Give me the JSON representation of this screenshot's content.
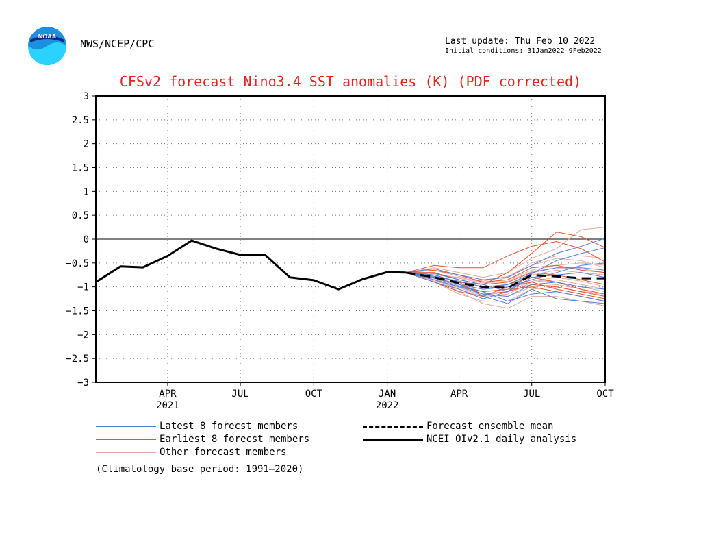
{
  "header": {
    "logo_text": "NOAA",
    "agency": "NWS/NCEP/CPC",
    "last_update": "Last update: Thu Feb 10 2022",
    "initial_conditions": "Initial conditions: 31Jan2022–9Feb2022"
  },
  "chart_data": {
    "type": "line",
    "title": "CFSv2 forecast Nino3.4 SST anomalies (K) (PDF corrected)",
    "xlabel": "",
    "ylabel": "",
    "ylim": [
      -3,
      3
    ],
    "yticks": [
      3,
      2.5,
      2,
      1.5,
      1,
      0.5,
      0,
      -0.5,
      -1,
      -1.5,
      -2,
      -2.5,
      -3
    ],
    "ytick_labels": [
      "3",
      "2.5",
      "2",
      "1.5",
      "1",
      "0.5",
      "0",
      "−0.5",
      "−1",
      "−1.5",
      "−2",
      "−2.5",
      "−3"
    ],
    "xlim": [
      "2021-01-15",
      "2022-10-15"
    ],
    "xticks": [
      {
        "date": "2021-04-15",
        "label": "APR",
        "year": "2021"
      },
      {
        "date": "2021-07-15",
        "label": "JUL",
        "year": ""
      },
      {
        "date": "2021-10-15",
        "label": "OCT",
        "year": ""
      },
      {
        "date": "2022-01-15",
        "label": "JAN",
        "year": "2022"
      },
      {
        "date": "2022-04-15",
        "label": "APR",
        "year": ""
      },
      {
        "date": "2022-07-15",
        "label": "JUL",
        "year": ""
      },
      {
        "date": "2022-10-15",
        "label": "OCT",
        "year": ""
      }
    ],
    "grid": true,
    "zero_line": true,
    "analysis": {
      "name": "NCEI OIv2.1 daily analysis",
      "color": "#000000",
      "x": [
        "2021-01-15",
        "2021-02-15",
        "2021-03-15",
        "2021-04-15",
        "2021-05-15",
        "2021-06-15",
        "2021-07-15",
        "2021-08-15",
        "2021-09-15",
        "2021-10-15",
        "2021-11-15",
        "2021-12-15",
        "2022-01-15",
        "2022-02-07"
      ],
      "y": [
        -0.9,
        -0.57,
        -0.59,
        -0.35,
        -0.03,
        -0.2,
        -0.33,
        -0.33,
        -0.8,
        -0.86,
        -1.05,
        -0.84,
        -0.69,
        -0.7
      ]
    },
    "ensemble_mean": {
      "name": "Forecast ensemble mean",
      "color": "#000000",
      "x": [
        "2022-02-07",
        "2022-03-15",
        "2022-04-15",
        "2022-05-15",
        "2022-06-15",
        "2022-07-15",
        "2022-08-15",
        "2022-09-15",
        "2022-10-15"
      ],
      "y": [
        -0.7,
        -0.8,
        -0.92,
        -1.0,
        -1.02,
        -0.75,
        -0.78,
        -0.82,
        -0.82
      ]
    },
    "members_x": [
      "2022-02-07",
      "2022-03-15",
      "2022-04-15",
      "2022-05-15",
      "2022-06-15",
      "2022-07-15",
      "2022-08-15",
      "2022-09-15",
      "2022-10-15"
    ],
    "latest_members": {
      "name": "Latest 8 forecst members",
      "color": "#4f7fd9",
      "series": [
        [
          -0.7,
          -0.62,
          -0.75,
          -0.85,
          -0.8,
          -0.55,
          -0.3,
          -0.15,
          0.02
        ],
        [
          -0.7,
          -0.8,
          -0.95,
          -1.05,
          -1.0,
          -0.85,
          -0.7,
          -0.55,
          -0.5
        ],
        [
          -0.7,
          -0.75,
          -0.9,
          -1.2,
          -1.35,
          -1.05,
          -1.25,
          -1.3,
          -1.35
        ],
        [
          -0.7,
          -0.85,
          -1.0,
          -1.15,
          -1.2,
          -0.95,
          -0.9,
          -1.0,
          -1.05
        ],
        [
          -0.7,
          -0.72,
          -0.85,
          -0.95,
          -1.1,
          -0.7,
          -0.6,
          -0.6,
          -0.65
        ],
        [
          -0.7,
          -0.9,
          -1.05,
          -1.25,
          -1.1,
          -0.8,
          -0.75,
          -0.7,
          -0.8
        ],
        [
          -0.7,
          -0.78,
          -0.88,
          -1.0,
          -0.95,
          -0.72,
          -0.45,
          -0.3,
          -0.18
        ],
        [
          -0.7,
          -0.82,
          -0.98,
          -1.1,
          -1.3,
          -1.15,
          -1.1,
          -1.2,
          -1.3
        ]
      ]
    },
    "earliest_members": {
      "name": "Earliest 8 forecst members",
      "color": "#e8502a",
      "series": [
        [
          -0.7,
          -0.55,
          -0.6,
          -0.6,
          -0.35,
          -0.15,
          -0.05,
          -0.2,
          -0.48
        ],
        [
          -0.7,
          -0.7,
          -0.85,
          -0.95,
          -0.7,
          -0.3,
          0.15,
          0.05,
          -0.18
        ],
        [
          -0.7,
          -0.8,
          -0.95,
          -1.05,
          -0.95,
          -0.8,
          -0.9,
          -1.05,
          -1.15
        ],
        [
          -0.7,
          -0.85,
          -1.0,
          -1.1,
          -1.05,
          -1.0,
          -1.1,
          -1.2,
          -1.3
        ],
        [
          -0.7,
          -0.65,
          -0.75,
          -0.9,
          -0.85,
          -0.6,
          -0.55,
          -0.65,
          -0.7
        ],
        [
          -0.7,
          -0.9,
          -1.1,
          -1.2,
          -1.0,
          -0.9,
          -1.05,
          -1.15,
          -1.25
        ],
        [
          -0.7,
          -0.75,
          -0.9,
          -0.95,
          -0.9,
          -0.7,
          -0.75,
          -0.85,
          -0.95
        ],
        [
          -0.7,
          -0.8,
          -0.95,
          -1.15,
          -1.1,
          -0.95,
          -1.0,
          -1.1,
          -1.2
        ]
      ]
    },
    "other_members": {
      "name": "Other forecast members",
      "color": "#e2aaa0",
      "series": [
        [
          -0.7,
          -0.6,
          -0.7,
          -0.8,
          -0.7,
          -0.4,
          -0.2,
          0.2,
          0.25
        ],
        [
          -0.7,
          -0.8,
          -1.1,
          -1.35,
          -1.45,
          -1.2,
          -1.2,
          -1.3,
          -1.4
        ],
        [
          -0.7,
          -0.7,
          -0.85,
          -0.95,
          -0.8,
          -0.5,
          -0.35,
          -0.35,
          -0.4
        ],
        [
          -0.7,
          -0.85,
          -1.05,
          -1.2,
          -1.15,
          -0.9,
          -0.85,
          -0.95,
          -1.05
        ],
        [
          -0.7,
          -0.75,
          -0.8,
          -0.9,
          -0.85,
          -0.65,
          -0.55,
          -0.5,
          -0.55
        ],
        [
          -0.7,
          -0.9,
          -1.15,
          -1.3,
          -1.3,
          -1.05,
          -1.0,
          -1.1,
          -1.15
        ],
        [
          -0.7,
          -0.78,
          -0.9,
          -1.0,
          -0.95,
          -0.75,
          -0.65,
          -0.7,
          -0.75
        ],
        [
          -0.7,
          -0.82,
          -0.95,
          -1.1,
          -1.05,
          -0.85,
          -0.9,
          -1.0,
          -1.1
        ],
        [
          -0.7,
          -0.65,
          -0.78,
          -0.88,
          -0.78,
          -0.55,
          -0.4,
          -0.45,
          -0.6
        ],
        [
          -0.7,
          -0.88,
          -1.0,
          -1.15,
          -1.2,
          -1.0,
          -0.95,
          -1.05,
          -1.2
        ],
        [
          -0.7,
          -0.72,
          -0.82,
          -0.92,
          -0.88,
          -0.68,
          -0.6,
          -0.62,
          -0.7
        ],
        [
          -0.7,
          -0.86,
          -1.02,
          -1.18,
          -1.1,
          -0.88,
          -0.8,
          -0.88,
          -1.0
        ]
      ]
    },
    "legend": {
      "latest": "Latest 8 forecst members",
      "earliest": "Earliest 8 forecst members",
      "other": "Other forecast members",
      "mean": "Forecast ensemble mean",
      "analysis": "NCEI OIv2.1 daily analysis",
      "note": "(Climatology base period: 1991–2020)"
    },
    "colors": {
      "title": "#e8201e",
      "latest": "#4f7fd9",
      "earliest": "#e8502a",
      "other": "#e2aaa0",
      "black": "#000000"
    }
  }
}
